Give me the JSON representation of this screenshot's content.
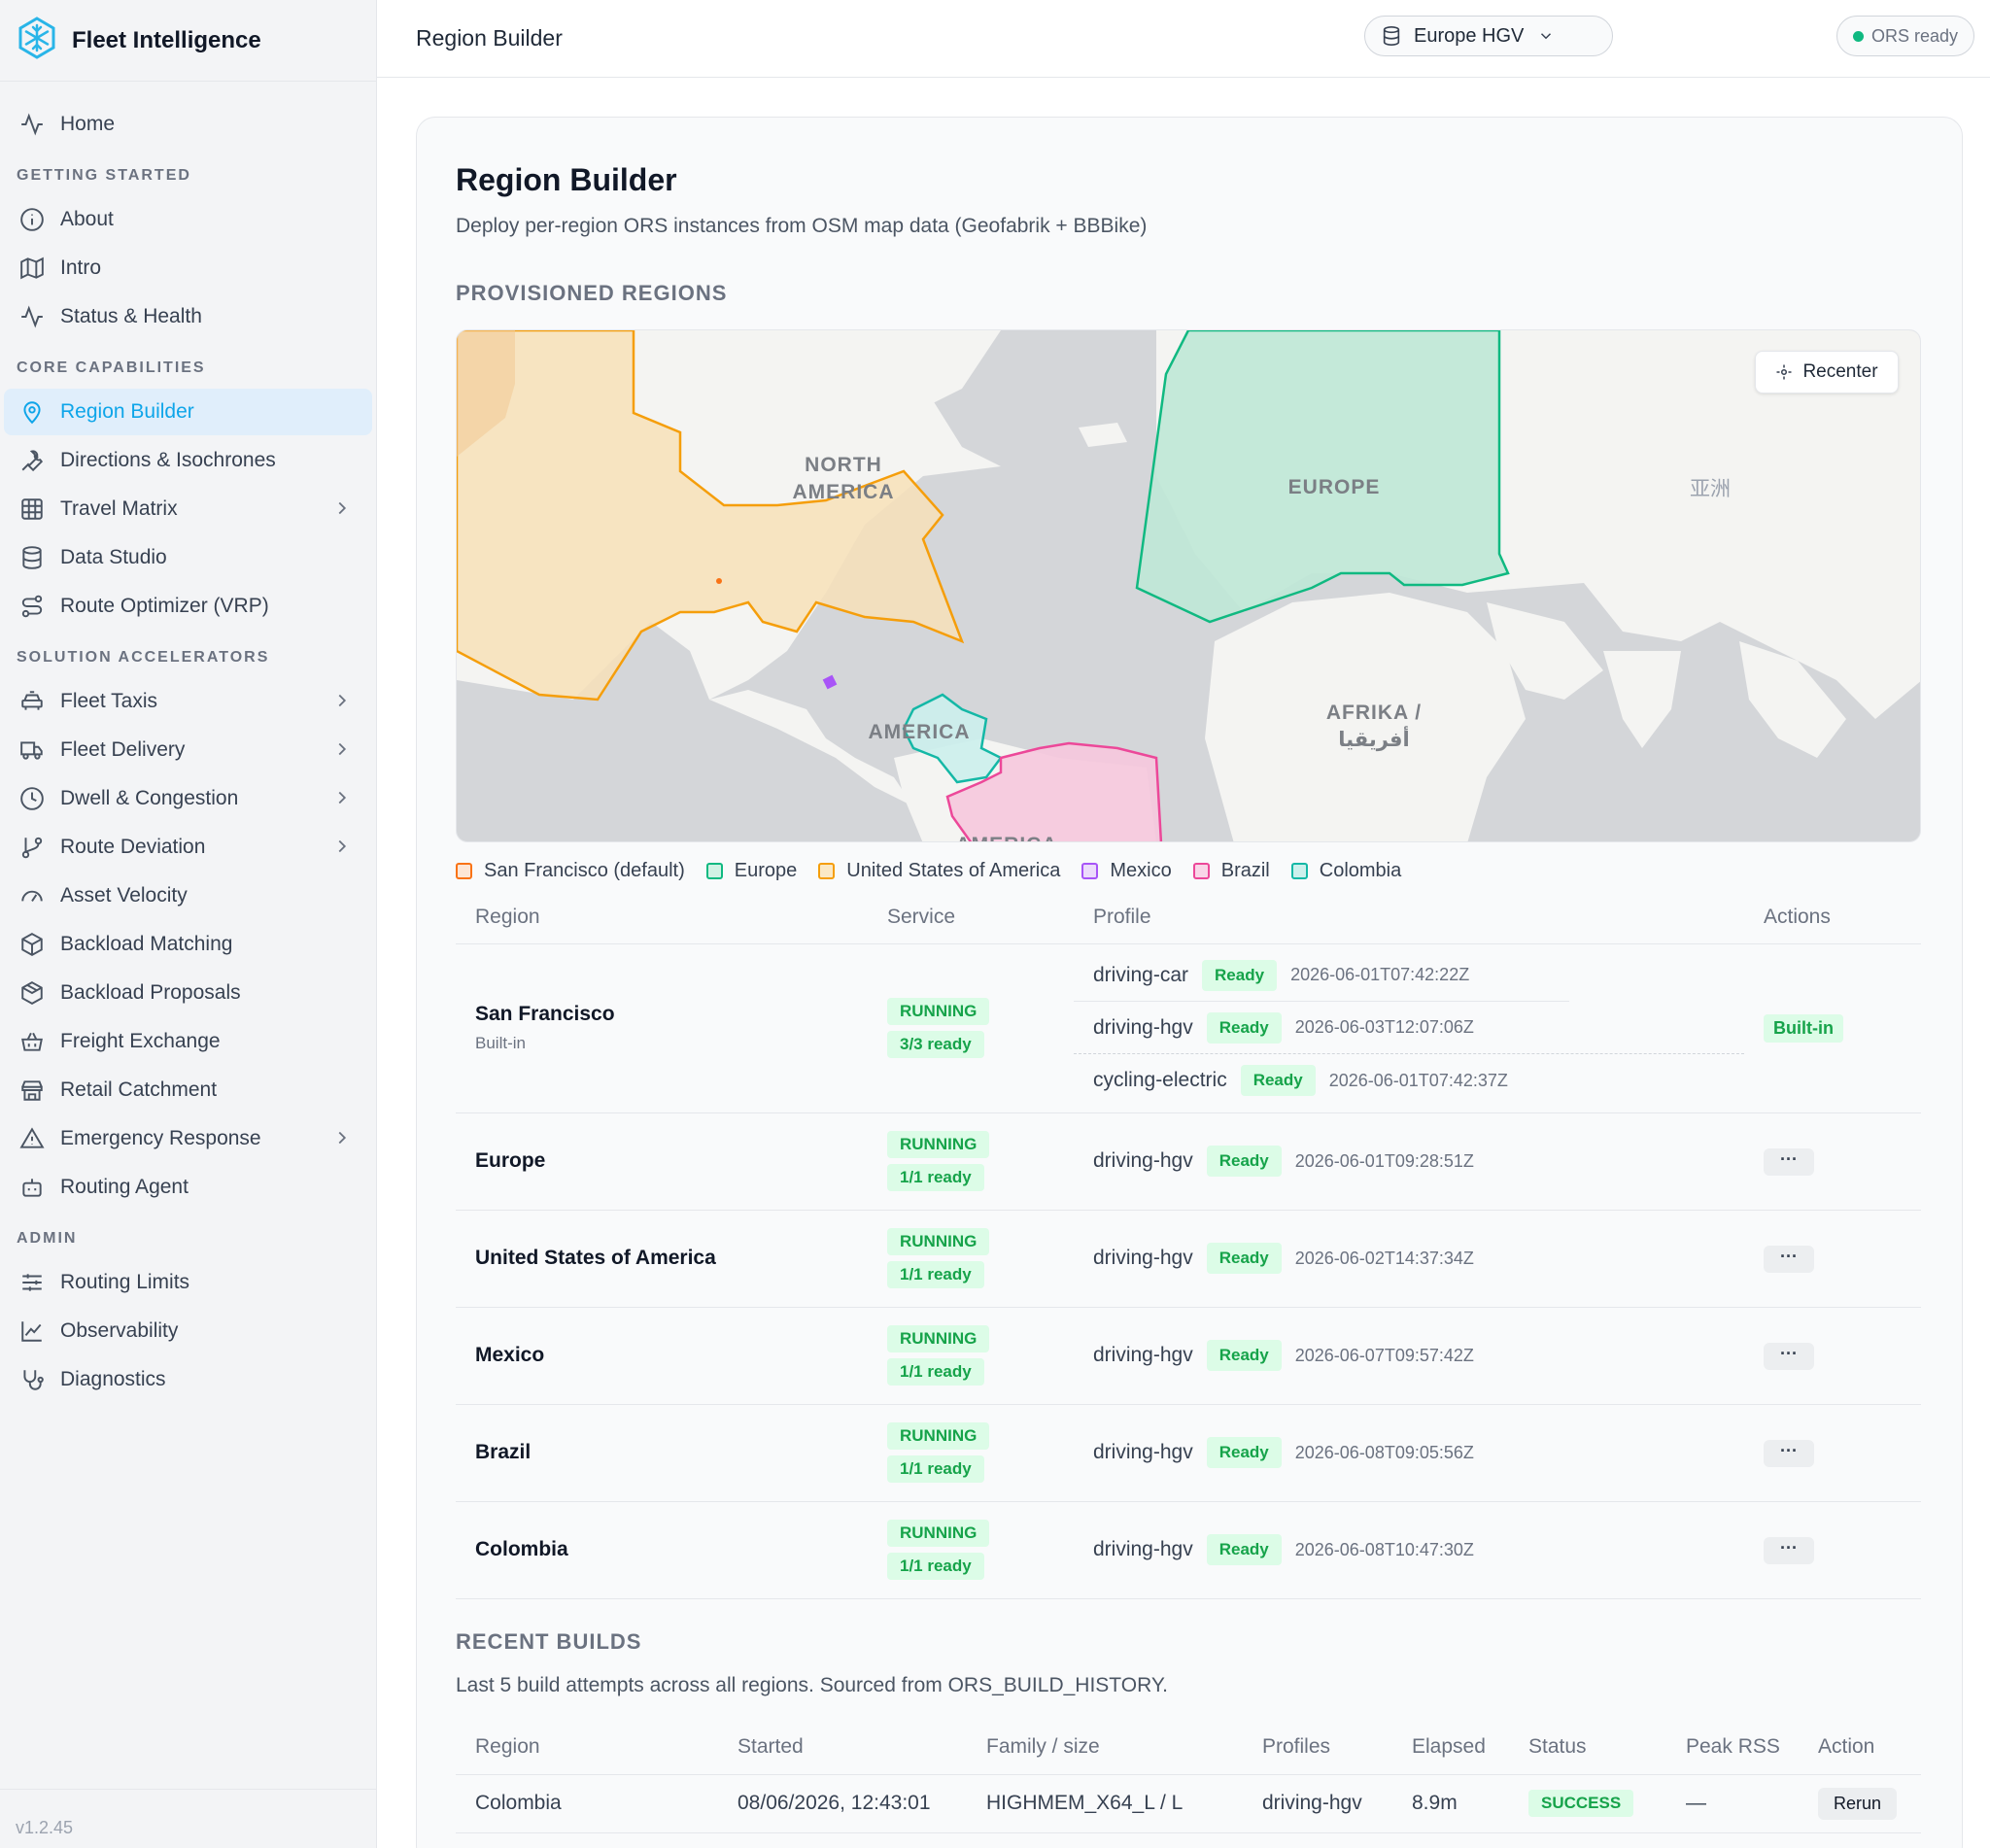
{
  "app": {
    "name": "Fleet Intelligence",
    "version": "v1.2.45"
  },
  "topbar": {
    "title": "Region Builder",
    "profile": "Europe HGV",
    "status": "ORS ready"
  },
  "nav": {
    "home": "Home",
    "sections": [
      {
        "title": "GETTING STARTED",
        "items": [
          {
            "label": "About",
            "icon": "info-icon"
          },
          {
            "label": "Intro",
            "icon": "map-icon"
          },
          {
            "label": "Status & Health",
            "icon": "activity-icon"
          }
        ]
      },
      {
        "title": "CORE CAPABILITIES",
        "items": [
          {
            "label": "Region Builder",
            "icon": "map-pin-icon",
            "active": true
          },
          {
            "label": "Directions & Isochrones",
            "icon": "wrench-icon"
          },
          {
            "label": "Travel Matrix",
            "icon": "grid-icon",
            "chevron": true
          },
          {
            "label": "Data Studio",
            "icon": "database-icon"
          },
          {
            "label": "Route Optimizer (VRP)",
            "icon": "route-icon"
          }
        ]
      },
      {
        "title": "SOLUTION ACCELERATORS",
        "items": [
          {
            "label": "Fleet Taxis",
            "icon": "car-icon",
            "chevron": true
          },
          {
            "label": "Fleet Delivery",
            "icon": "truck-icon",
            "chevron": true
          },
          {
            "label": "Dwell & Congestion",
            "icon": "clock-icon",
            "chevron": true
          },
          {
            "label": "Route Deviation",
            "icon": "git-branch-icon",
            "chevron": true
          },
          {
            "label": "Asset Velocity",
            "icon": "gauge-icon"
          },
          {
            "label": "Backload Matching",
            "icon": "package-icon"
          },
          {
            "label": "Backload Proposals",
            "icon": "package-open-icon"
          },
          {
            "label": "Freight Exchange",
            "icon": "basket-icon"
          },
          {
            "label": "Retail Catchment",
            "icon": "store-icon"
          },
          {
            "label": "Emergency Response",
            "icon": "alert-triangle-icon",
            "chevron": true
          },
          {
            "label": "Routing Agent",
            "icon": "bot-icon"
          }
        ]
      },
      {
        "title": "ADMIN",
        "items": [
          {
            "label": "Routing Limits",
            "icon": "sliders-icon"
          },
          {
            "label": "Observability",
            "icon": "line-chart-icon"
          },
          {
            "label": "Diagnostics",
            "icon": "stethoscope-icon"
          }
        ]
      }
    ]
  },
  "page": {
    "title": "Region Builder",
    "subtitle": "Deploy per-region ORS instances from OSM map data (Geofabrik + BBBike)",
    "provisioned_title": "PROVISIONED REGIONS",
    "recenter": "Recenter",
    "map_labels": {
      "north_america": "NORTH AMERICA",
      "europe": "EUROPE",
      "asia": "亚洲",
      "africa": "AFRIKA / أفريقيا",
      "south_america": "AMERICA",
      "south_america_bottom": "AMERICA"
    },
    "legend": [
      {
        "label": "San Francisco (default)",
        "color": "#f97316",
        "fill": "#fde6d6"
      },
      {
        "label": "Europe",
        "color": "#10b981",
        "fill": "#d1f2e4"
      },
      {
        "label": "United States of America",
        "color": "#f59e0b",
        "fill": "#fbe8c4"
      },
      {
        "label": "Mexico",
        "color": "#a855f7",
        "fill": "#ecdcfb"
      },
      {
        "label": "Brazil",
        "color": "#ec4899",
        "fill": "#f9d6e8"
      },
      {
        "label": "Colombia",
        "color": "#14b8a6",
        "fill": "#ccf0ec"
      }
    ],
    "regions_table": {
      "headers": [
        "Region",
        "Service",
        "Profile",
        "Actions"
      ],
      "rows": [
        {
          "name": "San Francisco",
          "sub": "Built-in",
          "service": "RUNNING",
          "ready": "3/3 ready",
          "profiles": [
            {
              "name": "driving-car",
              "status": "Ready",
              "ts": "2026-06-01T07:42:22Z"
            },
            {
              "name": "driving-hgv",
              "status": "Ready",
              "ts": "2026-06-03T12:07:06Z"
            },
            {
              "name": "cycling-electric",
              "status": "Ready",
              "ts": "2026-06-01T07:42:37Z"
            }
          ],
          "action": "Built-in"
        },
        {
          "name": "Europe",
          "service": "RUNNING",
          "ready": "1/1 ready",
          "profile": "driving-hgv",
          "status": "Ready",
          "ts": "2026-06-01T09:28:51Z",
          "action": "···"
        },
        {
          "name": "United States of America",
          "service": "RUNNING",
          "ready": "1/1 ready",
          "profile": "driving-hgv",
          "status": "Ready",
          "ts": "2026-06-02T14:37:34Z",
          "action": "···"
        },
        {
          "name": "Mexico",
          "service": "RUNNING",
          "ready": "1/1 ready",
          "profile": "driving-hgv",
          "status": "Ready",
          "ts": "2026-06-07T09:57:42Z",
          "action": "···"
        },
        {
          "name": "Brazil",
          "service": "RUNNING",
          "ready": "1/1 ready",
          "profile": "driving-hgv",
          "status": "Ready",
          "ts": "2026-06-08T09:05:56Z",
          "action": "···"
        },
        {
          "name": "Colombia",
          "service": "RUNNING",
          "ready": "1/1 ready",
          "profile": "driving-hgv",
          "status": "Ready",
          "ts": "2026-06-08T10:47:30Z",
          "action": "···"
        }
      ]
    },
    "recent_builds": {
      "title": "RECENT BUILDS",
      "subtitle": "Last 5 build attempts across all regions. Sourced from ORS_BUILD_HISTORY.",
      "headers": [
        "Region",
        "Started",
        "Family / size",
        "Profiles",
        "Elapsed",
        "Status",
        "Peak RSS",
        "Action"
      ],
      "rows": [
        {
          "region": "Colombia",
          "started": "08/06/2026, 12:43:01",
          "family": "HIGHMEM_X64_L / L",
          "profiles": "driving-hgv",
          "elapsed": "8.9m",
          "status": "SUCCESS",
          "peak_rss": "—",
          "action": "Rerun"
        }
      ]
    }
  }
}
